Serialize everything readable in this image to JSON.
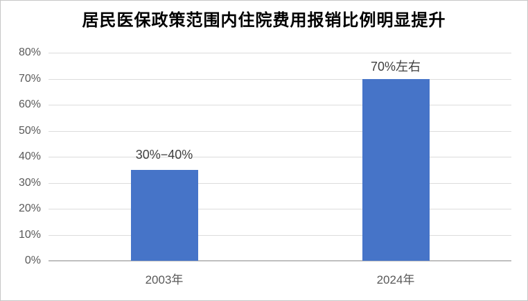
{
  "title": "居民医保政策范围内住院费用报销比例明显提升",
  "colors": {
    "bar": "#4674C8",
    "gridline": "#DCDCDC",
    "baseline": "#BFBFBF",
    "axis_text": "#595959",
    "data_label_text": "#3F3F3F",
    "title_text": "#000000",
    "frame_border": "#C6C6C6",
    "background": "#FFFFFF"
  },
  "chart_data": {
    "type": "bar",
    "title": "居民医保政策范围内住院费用报销比例明显提升",
    "categories": [
      "2003年",
      "2024年"
    ],
    "values": [
      35,
      70
    ],
    "data_labels": [
      "30%−40%",
      "70%左右"
    ],
    "xlabel": "",
    "ylabel": "",
    "ylim": [
      0,
      80
    ],
    "ytick_interval": 10,
    "ytick_labels": [
      "0%",
      "10%",
      "20%",
      "30%",
      "40%",
      "50%",
      "60%",
      "70%",
      "80%"
    ],
    "grid": true,
    "legend": false
  }
}
